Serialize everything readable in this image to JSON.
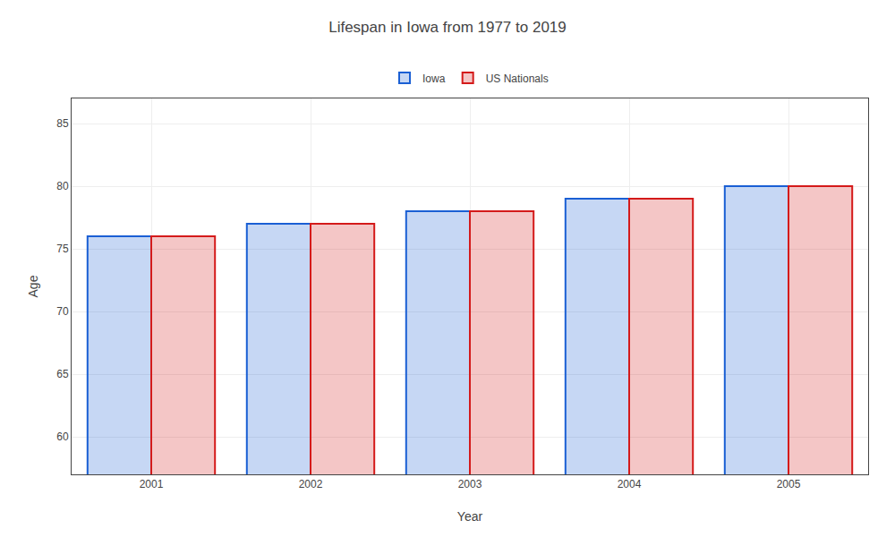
{
  "chart_data": {
    "type": "bar",
    "title": "Lifespan in Iowa from 1977 to 2019",
    "xlabel": "Year",
    "ylabel": "Age",
    "categories": [
      "2001",
      "2002",
      "2003",
      "2004",
      "2005"
    ],
    "series": [
      {
        "name": "Iowa",
        "color": "#1a5fd4",
        "values": [
          76,
          77,
          78,
          79,
          80
        ]
      },
      {
        "name": "US Nationals",
        "color": "#d41a1a",
        "values": [
          76,
          77,
          78,
          79,
          80
        ]
      }
    ],
    "ylim": [
      57,
      87
    ],
    "yticks": [
      60,
      65,
      70,
      75,
      80,
      85
    ],
    "grid": true,
    "legend": "top"
  }
}
